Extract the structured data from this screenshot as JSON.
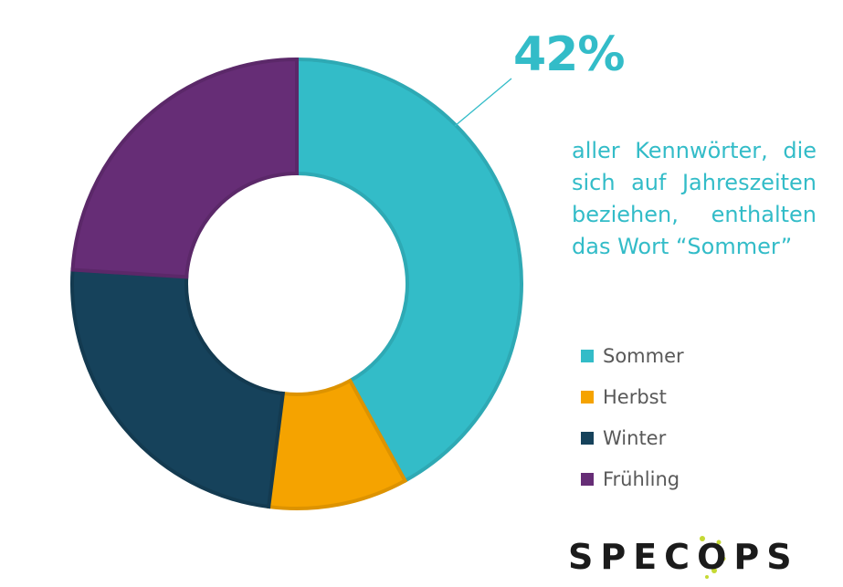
{
  "chart_data": {
    "type": "pie",
    "variant": "donut",
    "categories": [
      "Sommer",
      "Herbst",
      "Winter",
      "Frühling"
    ],
    "values": [
      42,
      10,
      24,
      24
    ],
    "colors": [
      "#33bcc8",
      "#f5a300",
      "#16425b",
      "#662d76"
    ],
    "edge_colors": [
      "#2ea9b4",
      "#dd9300",
      "#133a50",
      "#5b2869"
    ],
    "start_angle_deg": 0,
    "direction": "clockwise",
    "legend": "right"
  },
  "highlight": {
    "value_label": "42%",
    "caption": "aller Kennwörter, die sich auf Jahreszeiten beziehen, enthalten das Wort “Sommer”",
    "color": "#33bcc8"
  },
  "logo": {
    "text": "SPECOPS",
    "dot_color": "#c5d934"
  }
}
